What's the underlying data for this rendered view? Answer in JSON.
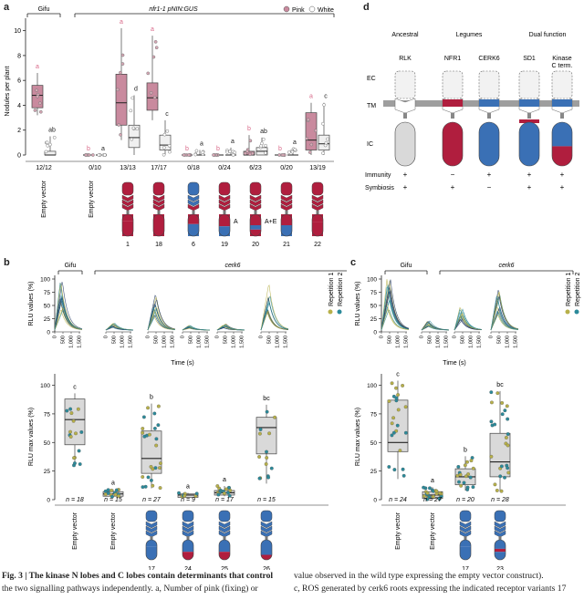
{
  "panels": {
    "a": "a",
    "b": "b",
    "c": "c",
    "d": "d"
  },
  "panel_a": {
    "group_gifu": "Gifu",
    "group_mutant": "nfr1-1 pNIN:GUS",
    "legend": {
      "pink": "Pink",
      "white": "White"
    },
    "ylabel": "Nodules per plant",
    "yticks": [
      "0",
      "2",
      "4",
      "6",
      "8",
      "10"
    ],
    "counts": [
      "12/12",
      "0/10",
      "13/13",
      "17/17",
      "0/18",
      "0/24",
      "6/23",
      "0/20",
      "13/19"
    ],
    "xlabels": [
      "Empty vector",
      "Empty vector",
      "1",
      "18",
      "6",
      "19",
      "20",
      "21",
      "22"
    ],
    "domain_labels": [
      "A",
      "A+E"
    ],
    "letters_pink": [
      "a",
      "b",
      "a",
      "a",
      "b",
      "b",
      "b",
      "b",
      "a"
    ],
    "letters_white": [
      "ab",
      "a",
      "d",
      "c",
      "a",
      "a",
      "ab",
      "a",
      "c"
    ]
  },
  "panel_b": {
    "group_gifu": "Gifu",
    "group_mutant": "cerk6",
    "legend": [
      "Repetition 1",
      "Repetition 2"
    ],
    "top_ylabel": "RLU values (%)",
    "top_yticks": [
      "0",
      "25",
      "50",
      "75",
      "100"
    ],
    "top_xticks": [
      "0",
      "500",
      "1,000",
      "1,500"
    ],
    "top_xlabel": "Time (s)",
    "bottom_ylabel": "RLU max values (%)",
    "bottom_yticks": [
      "0",
      "25",
      "50",
      "75",
      "100"
    ],
    "letters": [
      "c",
      "a",
      "b",
      "a",
      "a",
      "bc"
    ],
    "n": [
      "n = 18",
      "n = 15",
      "n = 27",
      "n = 9",
      "n = 17",
      "n = 15"
    ],
    "xlabels": [
      "Empty vector",
      "Empty vector",
      "17",
      "24",
      "25",
      "26"
    ]
  },
  "panel_c": {
    "group_gifu": "Gifu",
    "group_mutant": "cerk6",
    "legend": [
      "Repetition 1",
      "Repetition 2"
    ],
    "top_ylabel": "RLU values (%)",
    "top_yticks": [
      "0",
      "25",
      "50",
      "75",
      "100"
    ],
    "top_xticks": [
      "0",
      "500",
      "1,000",
      "1,500"
    ],
    "top_xlabel": "Time (s)",
    "bottom_ylabel": "RLU max values (%)",
    "bottom_yticks": [
      "0",
      "25",
      "50",
      "75",
      "100"
    ],
    "letters": [
      "c",
      "a",
      "b",
      "bc"
    ],
    "n": [
      "n = 24",
      "n = 27",
      "n = 20",
      "n = 28"
    ],
    "xlabels": [
      "Empty vector",
      "Empty vector",
      "17",
      "23"
    ]
  },
  "panel_d": {
    "headers": {
      "ancestral": "Ancestral",
      "legumes": "Legumes",
      "dual": "Dual function"
    },
    "receptors": [
      "RLK",
      "NFR1",
      "CERK6",
      "SD1",
      "Kinase C term."
    ],
    "regions": [
      "EC",
      "TM",
      "IC"
    ],
    "rows": [
      {
        "label": "Immunity",
        "values": [
          "+",
          "−",
          "+",
          "+",
          "+"
        ]
      },
      {
        "label": "Symbiosis",
        "values": [
          "+",
          "+",
          "−",
          "+",
          "+"
        ]
      }
    ]
  },
  "caption": {
    "left_1": "Fig. 3 | The kinase N lobes and C lobes contain determinants that control",
    "left_2": "the two signalling pathways independently. a, Number of pink (fixing) or",
    "right_1": "value observed in the wild type expressing the empty vector construct).",
    "right_2": "c, ROS generated by cerk6 roots expressing the indicated receptor variants 17"
  },
  "colors": {
    "red": "#b01e3e",
    "blue": "#3a70b5",
    "pink": "#c98a9e",
    "grey": "#d9d9d9",
    "green": "#b7b04a",
    "teal": "#2b8a9a",
    "navy": "#1e3560"
  }
}
